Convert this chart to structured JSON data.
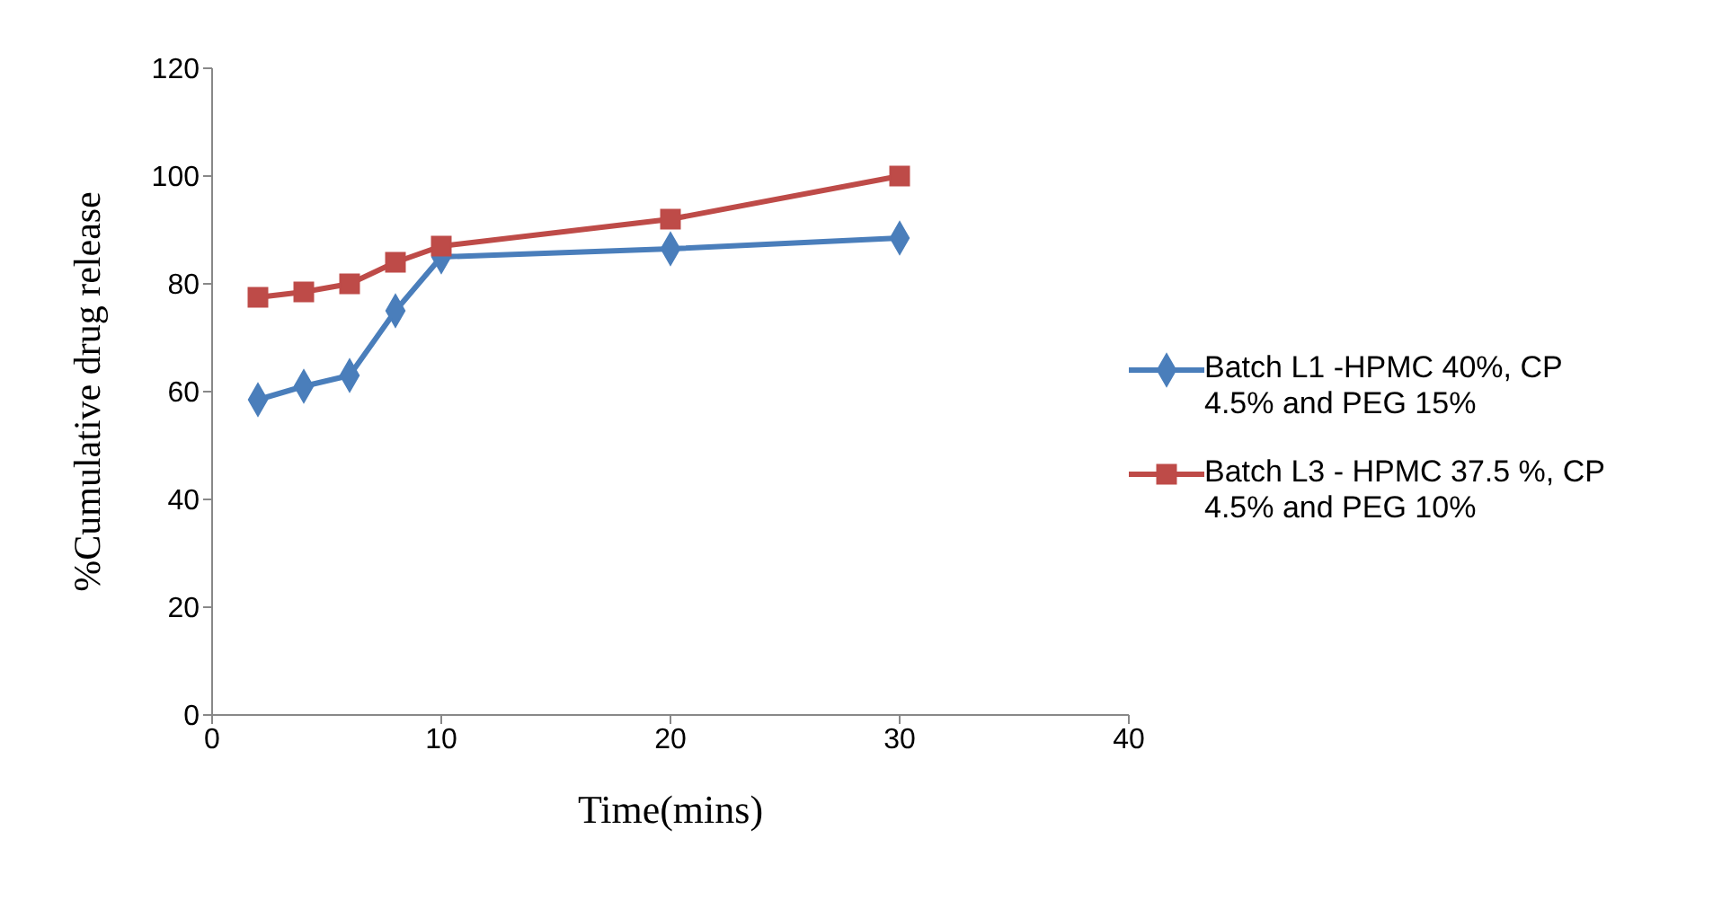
{
  "chart_data": {
    "type": "line",
    "xlabel": "Time(mins)",
    "ylabel": "%Cumulative drug release",
    "x": [
      2,
      4,
      6,
      8,
      10,
      20,
      30
    ],
    "xlim": [
      0,
      40
    ],
    "xticks": [
      0,
      10,
      20,
      30,
      40
    ],
    "ylim": [
      0,
      120
    ],
    "yticks": [
      0,
      20,
      40,
      60,
      80,
      100,
      120
    ],
    "grid": false,
    "legend": "right",
    "line_style": "solid",
    "series": [
      {
        "name": "Batch L1 -HPMC 40%, CP 4.5% and PEG 15%",
        "color": "#4a7ebb",
        "marker": "diamond",
        "values": [
          58.5,
          61,
          63,
          75,
          85,
          86.5,
          88.5
        ]
      },
      {
        "name": "Batch L3 - HPMC 37.5 %, CP 4.5% and PEG 10%",
        "color": "#be4b48",
        "marker": "square",
        "values": [
          77.5,
          78.5,
          80,
          84,
          87,
          92,
          100
        ]
      }
    ]
  }
}
